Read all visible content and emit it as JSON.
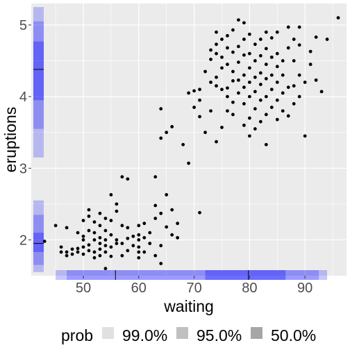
{
  "chart_data": {
    "type": "scatter",
    "xlabel": "waiting",
    "ylabel": "eruptions",
    "xlim": [
      40.6,
      97.5
    ],
    "ylim": [
      1.5,
      5.3
    ],
    "x_ticks": [
      50,
      60,
      70,
      80,
      90
    ],
    "y_ticks": [
      2,
      3,
      4,
      5
    ],
    "grid": true,
    "points": [
      [
        43,
        1.98
      ],
      [
        45,
        2.2
      ],
      [
        46,
        1.83
      ],
      [
        46,
        1.9
      ],
      [
        47,
        1.78
      ],
      [
        47,
        1.83
      ],
      [
        47,
        2.17
      ],
      [
        48,
        1.8
      ],
      [
        48,
        1.87
      ],
      [
        49,
        1.83
      ],
      [
        49,
        1.88
      ],
      [
        49,
        2.1
      ],
      [
        50,
        1.8
      ],
      [
        50,
        1.9
      ],
      [
        50,
        2.0
      ],
      [
        50,
        2.05
      ],
      [
        50,
        2.27
      ],
      [
        51,
        1.85
      ],
      [
        51,
        1.93
      ],
      [
        51,
        2.13
      ],
      [
        51,
        2.33
      ],
      [
        51,
        2.42
      ],
      [
        52,
        1.75
      ],
      [
        52,
        1.83
      ],
      [
        52,
        2.0
      ],
      [
        52,
        2.1
      ],
      [
        52,
        2.25
      ],
      [
        53,
        1.78
      ],
      [
        53,
        1.87
      ],
      [
        53,
        1.95
      ],
      [
        53,
        2.03
      ],
      [
        53,
        2.2
      ],
      [
        53,
        2.37
      ],
      [
        54,
        1.6
      ],
      [
        54,
        1.83
      ],
      [
        54,
        1.92
      ],
      [
        54,
        2.0
      ],
      [
        54,
        2.13
      ],
      [
        54,
        2.3
      ],
      [
        55,
        1.77
      ],
      [
        55,
        1.9
      ],
      [
        55,
        2.07
      ],
      [
        55,
        2.27
      ],
      [
        55,
        2.63
      ],
      [
        56,
        1.95
      ],
      [
        56,
        2.0
      ],
      [
        56,
        2.4
      ],
      [
        56,
        2.5
      ],
      [
        57,
        1.78
      ],
      [
        57,
        1.95
      ],
      [
        57,
        2.2
      ],
      [
        57,
        2.88
      ],
      [
        58,
        1.85
      ],
      [
        58,
        2.02
      ],
      [
        58,
        2.17
      ],
      [
        58,
        2.85
      ],
      [
        59,
        1.92
      ],
      [
        59,
        2.05
      ],
      [
        60,
        1.75
      ],
      [
        60,
        1.83
      ],
      [
        60,
        1.9
      ],
      [
        60,
        2.0
      ],
      [
        60,
        2.07
      ],
      [
        60,
        2.2
      ],
      [
        61,
        1.83
      ],
      [
        61,
        2.03
      ],
      [
        61,
        2.23
      ],
      [
        62,
        1.95
      ],
      [
        62,
        2.1
      ],
      [
        63,
        1.78
      ],
      [
        63,
        2.3
      ],
      [
        63,
        2.48
      ],
      [
        63,
        2.88
      ],
      [
        64,
        1.67
      ],
      [
        64,
        1.92
      ],
      [
        64,
        2.37
      ],
      [
        64,
        3.42
      ],
      [
        64,
        3.83
      ],
      [
        65,
        2.18
      ],
      [
        65,
        2.63
      ],
      [
        65,
        3.5
      ],
      [
        66,
        2.07
      ],
      [
        66,
        2.42
      ],
      [
        66,
        3.58
      ],
      [
        67,
        2.03
      ],
      [
        67,
        2.23
      ],
      [
        68,
        3.33
      ],
      [
        69,
        3.07
      ],
      [
        69,
        4.05
      ],
      [
        70,
        3.85
      ],
      [
        70,
        4.08
      ],
      [
        71,
        2.38
      ],
      [
        71,
        3.72
      ],
      [
        71,
        3.95
      ],
      [
        71,
        4.1
      ],
      [
        72,
        3.5
      ],
      [
        72,
        4.35
      ],
      [
        73,
        3.8
      ],
      [
        73,
        4.2
      ],
      [
        73,
        4.52
      ],
      [
        73,
        4.65
      ],
      [
        74,
        3.37
      ],
      [
        74,
        4.15
      ],
      [
        74,
        4.27
      ],
      [
        74,
        4.6
      ],
      [
        74,
        4.73
      ],
      [
        74,
        4.9
      ],
      [
        75,
        3.57
      ],
      [
        75,
        4.1
      ],
      [
        75,
        4.4
      ],
      [
        75,
        4.55
      ],
      [
        75,
        4.8
      ],
      [
        76,
        3.8
      ],
      [
        76,
        4.0
      ],
      [
        76,
        4.12
      ],
      [
        76,
        4.45
      ],
      [
        76,
        4.68
      ],
      [
        76,
        4.85
      ],
      [
        77,
        3.75
      ],
      [
        77,
        3.92
      ],
      [
        77,
        4.22
      ],
      [
        77,
        4.35
      ],
      [
        77,
        4.62
      ],
      [
        77,
        4.93
      ],
      [
        78,
        4.05
      ],
      [
        78,
        4.23
      ],
      [
        78,
        4.48
      ],
      [
        78,
        4.7
      ],
      [
        78,
        5.07
      ],
      [
        79,
        3.6
      ],
      [
        79,
        3.9
      ],
      [
        79,
        4.13
      ],
      [
        79,
        4.3
      ],
      [
        79,
        4.58
      ],
      [
        79,
        4.8
      ],
      [
        79,
        5.03
      ],
      [
        80,
        3.45
      ],
      [
        80,
        3.7
      ],
      [
        80,
        4.0
      ],
      [
        80,
        4.2
      ],
      [
        80,
        4.4
      ],
      [
        80,
        4.6
      ],
      [
        80,
        4.87
      ],
      [
        81,
        3.55
      ],
      [
        81,
        3.83
      ],
      [
        81,
        4.07
      ],
      [
        81,
        4.27
      ],
      [
        81,
        4.5
      ],
      [
        81,
        4.73
      ],
      [
        82,
        3.65
      ],
      [
        82,
        3.95
      ],
      [
        82,
        4.17
      ],
      [
        82,
        4.33
      ],
      [
        82,
        4.57
      ],
      [
        82,
        4.8
      ],
      [
        83,
        3.33
      ],
      [
        83,
        3.75
      ],
      [
        83,
        4.0
      ],
      [
        83,
        4.25
      ],
      [
        83,
        4.45
      ],
      [
        83,
        4.67
      ],
      [
        83,
        4.9
      ],
      [
        84,
        3.85
      ],
      [
        84,
        4.1
      ],
      [
        84,
        4.3
      ],
      [
        84,
        4.55
      ],
      [
        84,
        4.82
      ],
      [
        85,
        3.68
      ],
      [
        85,
        3.95
      ],
      [
        85,
        4.2
      ],
      [
        85,
        4.42
      ],
      [
        85,
        4.6
      ],
      [
        85,
        4.9
      ],
      [
        86,
        3.8
      ],
      [
        86,
        4.05
      ],
      [
        86,
        4.3
      ],
      [
        86,
        4.5
      ],
      [
        87,
        3.73
      ],
      [
        87,
        4.13
      ],
      [
        87,
        4.68
      ],
      [
        87,
        4.97
      ],
      [
        88,
        3.9
      ],
      [
        88,
        4.15
      ],
      [
        88,
        4.5
      ],
      [
        88,
        4.8
      ],
      [
        89,
        4.0
      ],
      [
        89,
        4.3
      ],
      [
        89,
        4.72
      ],
      [
        89,
        4.97
      ],
      [
        90,
        3.45
      ],
      [
        90,
        4.2
      ],
      [
        91,
        4.45
      ],
      [
        91,
        4.63
      ],
      [
        92,
        4.23
      ],
      [
        92,
        4.83
      ],
      [
        93,
        4.07
      ],
      [
        94,
        4.8
      ],
      [
        96,
        5.1
      ]
    ],
    "x_hdr": [
      {
        "prob": "99.0%",
        "from": 45.0,
        "to": 94.0
      },
      {
        "prob": "95.0%",
        "from": 47.0,
        "to": 92.5
      },
      {
        "prob": "50.0%",
        "from": 72.0,
        "to": 86.5
      }
    ],
    "x_hdr_mode": [
      55.8,
      79.8
    ],
    "y_hdr": [
      {
        "prob": "99.0%",
        "from": 1.55,
        "to": 2.55
      },
      {
        "prob": "99.0%",
        "from": 3.15,
        "to": 5.25
      },
      {
        "prob": "95.0%",
        "from": 1.65,
        "to": 2.35
      },
      {
        "prob": "95.0%",
        "from": 3.55,
        "to": 5.05
      },
      {
        "prob": "50.0%",
        "from": 1.83,
        "to": 2.1
      },
      {
        "prob": "50.0%",
        "from": 3.95,
        "to": 4.77
      }
    ],
    "y_hdr_mode": [
      1.95,
      4.38
    ],
    "hdr_color": "#0000ff",
    "point_color": "#000000",
    "panel_bg": "#ebebeb",
    "grid_color": "#ffffff",
    "legend": {
      "title": "prob",
      "position": "bottom",
      "items": [
        {
          "label": "99.0%",
          "color": "#e0e0e0"
        },
        {
          "label": "95.0%",
          "color": "#c0c0c0"
        },
        {
          "label": "50.0%",
          "color": "#a6a6a6"
        }
      ]
    }
  }
}
